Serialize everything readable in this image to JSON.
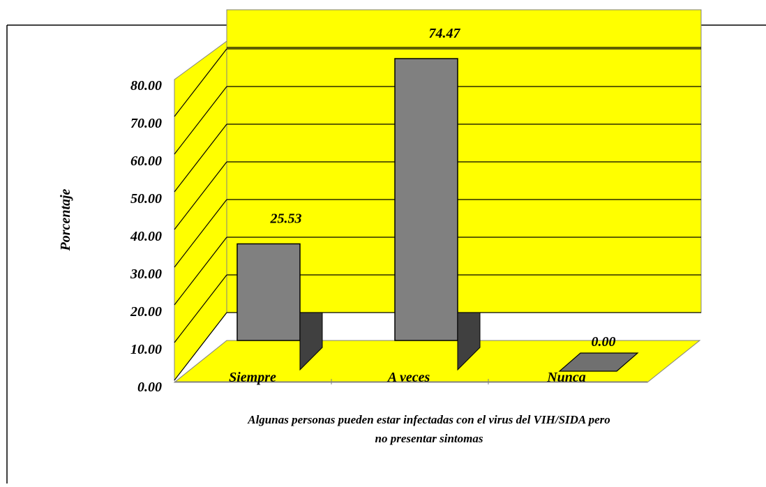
{
  "chart_data": {
    "type": "bar",
    "categories": [
      "Siempre",
      "A veces",
      "Nunca"
    ],
    "values": [
      25.53,
      74.47,
      0.0
    ],
    "data_labels": [
      "25.53",
      "74.47",
      "0.00"
    ],
    "xlabel": "Algunas personas pueden estar infectadas con el virus del VIH/SIDA pero no presentar sintomas",
    "xlabel_lines": [
      "Algunas personas pueden estar infectadas con el virus del VIH/SIDA pero",
      "no presentar sintomas"
    ],
    "ylabel": "Porcentaje",
    "ylim": [
      0,
      80
    ],
    "y_ticks": [
      "0.00",
      "10.00",
      "20.00",
      "30.00",
      "40.00",
      "50.00",
      "60.00",
      "70.00",
      "80.00"
    ],
    "grid": true,
    "legend": "none",
    "three_d": true,
    "colors": {
      "wall": "#ffff00",
      "floor": "#ffff00",
      "bar_front": "#808080",
      "bar_side": "#404040",
      "outline": "#000000",
      "text": "#000000"
    }
  }
}
